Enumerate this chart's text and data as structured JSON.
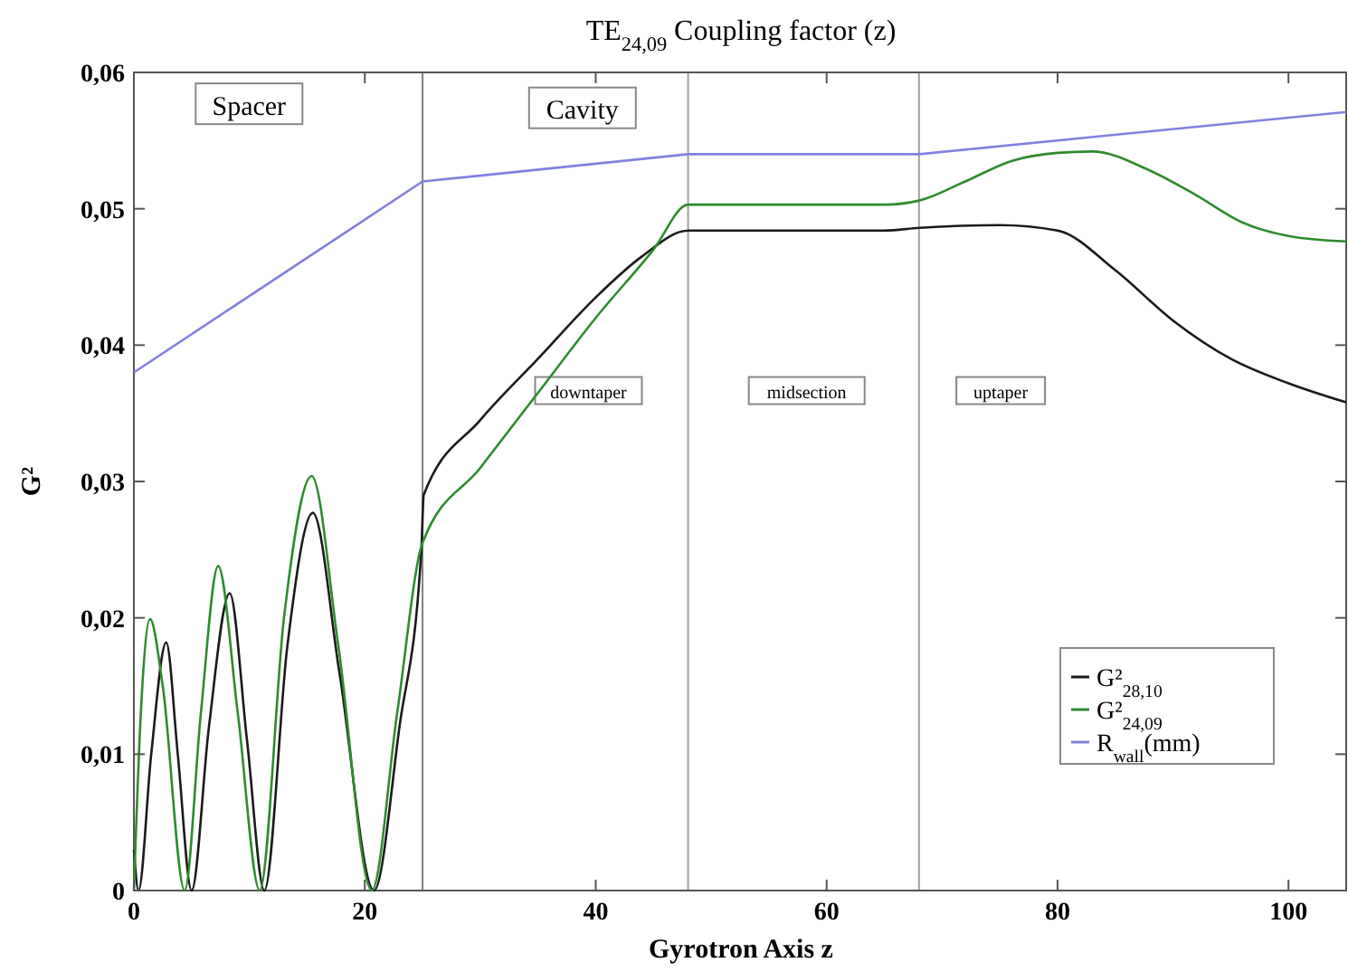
{
  "chart_data": {
    "type": "line",
    "title": "TE$_{24,09}$ Coupling factor (z)",
    "xlabel": "Gyrotron Axis z",
    "ylabel": "G²",
    "xlim": [
      0,
      105
    ],
    "xticks": [
      0,
      20,
      40,
      60,
      80,
      100
    ],
    "ylim": [
      0,
      0.06
    ],
    "yticks": [
      {
        "value": 0,
        "label": "0"
      },
      {
        "value": 0.01,
        "label": "0,01"
      },
      {
        "value": 0.02,
        "label": "0,02"
      },
      {
        "value": 0.03,
        "label": "0,03"
      },
      {
        "value": 0.04,
        "label": "0,04"
      },
      {
        "value": 0.05,
        "label": "0,05"
      },
      {
        "value": 0.06,
        "label": "0,06"
      }
    ],
    "grid": false,
    "legend": "bottom right",
    "marker": "none",
    "line_style": "solid",
    "series": [
      {
        "name": "G²$_{28,10}$",
        "color": "#1a1a1a",
        "x": [
          0,
          0.4,
          1.5,
          2.8,
          3.8,
          5,
          6.5,
          8.3,
          9.8,
          11.3,
          13.3,
          15.5,
          17.8,
          20.8,
          23,
          24.9,
          25.1,
          30,
          35,
          40,
          44,
          48,
          55,
          65,
          68,
          75,
          80,
          85,
          90,
          95,
          100,
          105
        ],
        "values": [
          0.003,
          0,
          0.01,
          0.0182,
          0.01,
          0,
          0.012,
          0.0218,
          0.011,
          0,
          0.018,
          0.0277,
          0.016,
          0,
          0.012,
          0.025,
          0.029,
          0.0345,
          0.039,
          0.0435,
          0.0465,
          0.0484,
          0.0484,
          0.0484,
          0.0486,
          0.0488,
          0.0484,
          0.0455,
          0.0418,
          0.039,
          0.0372,
          0.0358
        ]
      },
      {
        "name": "G²$_{24,09}$",
        "color": "#2e8b2e",
        "x": [
          0,
          0.6,
          1.4,
          2.5,
          4.4,
          5.8,
          7.3,
          9,
          10.9,
          13,
          15.4,
          17.7,
          20.6,
          22.8,
          25,
          30,
          35,
          40,
          45,
          48,
          55,
          65,
          68,
          72,
          76,
          80,
          83,
          88,
          92,
          96,
          100,
          105
        ],
        "values": [
          0,
          0.013,
          0.0199,
          0.015,
          0,
          0.013,
          0.0238,
          0.013,
          0,
          0.02,
          0.0304,
          0.018,
          0,
          0.013,
          0.0255,
          0.031,
          0.0365,
          0.042,
          0.047,
          0.0503,
          0.0503,
          0.0503,
          0.0506,
          0.052,
          0.0535,
          0.0541,
          0.0542,
          0.0528,
          0.051,
          0.049,
          0.048,
          0.0476
        ]
      },
      {
        "name": "R$_{wall}$(mm)",
        "color": "#8080e0",
        "x": [
          0,
          25,
          48,
          68,
          105
        ],
        "values": [
          0.038,
          0.052,
          0.054,
          0.054,
          0.0571
        ]
      }
    ],
    "ref_lines": [
      {
        "axis": "x",
        "value": 25,
        "color": "#808080"
      },
      {
        "axis": "x",
        "value": 48,
        "color": "#a0a0a0"
      },
      {
        "axis": "x",
        "value": 68,
        "color": "#a0a0a0"
      }
    ],
    "annotations": [
      "Spacer",
      "Cavity",
      "downtaper",
      "midsection",
      "uptaper"
    ]
  }
}
